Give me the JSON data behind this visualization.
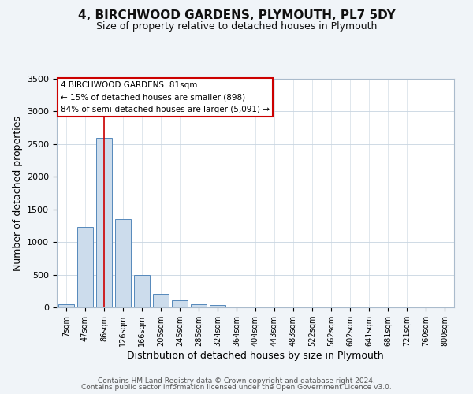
{
  "title": "4, BIRCHWOOD GARDENS, PLYMOUTH, PL7 5DY",
  "subtitle": "Size of property relative to detached houses in Plymouth",
  "xlabel": "Distribution of detached houses by size in Plymouth",
  "ylabel": "Number of detached properties",
  "bar_values": [
    50,
    1230,
    2590,
    1350,
    500,
    200,
    110,
    50,
    40,
    0,
    0,
    0,
    0,
    0,
    0,
    0,
    0,
    0,
    0,
    0,
    0
  ],
  "bar_labels": [
    "7sqm",
    "47sqm",
    "86sqm",
    "126sqm",
    "166sqm",
    "205sqm",
    "245sqm",
    "285sqm",
    "324sqm",
    "364sqm",
    "404sqm",
    "443sqm",
    "483sqm",
    "522sqm",
    "562sqm",
    "602sqm",
    "641sqm",
    "681sqm",
    "721sqm",
    "760sqm",
    "800sqm"
  ],
  "bar_color": "#ccdcec",
  "bar_edge_color": "#5588bb",
  "vline_x": 2,
  "vline_color": "#cc0000",
  "ylim": [
    0,
    3500
  ],
  "yticks": [
    0,
    500,
    1000,
    1500,
    2000,
    2500,
    3000,
    3500
  ],
  "annotation_title": "4 BIRCHWOOD GARDENS: 81sqm",
  "annotation_line1": "← 15% of detached houses are smaller (898)",
  "annotation_line2": "84% of semi-detached houses are larger (5,091) →",
  "footer1": "Contains HM Land Registry data © Crown copyright and database right 2024.",
  "footer2": "Contains public sector information licensed under the Open Government Licence v3.0.",
  "background_color": "#f0f4f8",
  "plot_background": "#ffffff",
  "grid_color": "#c8d4e0"
}
